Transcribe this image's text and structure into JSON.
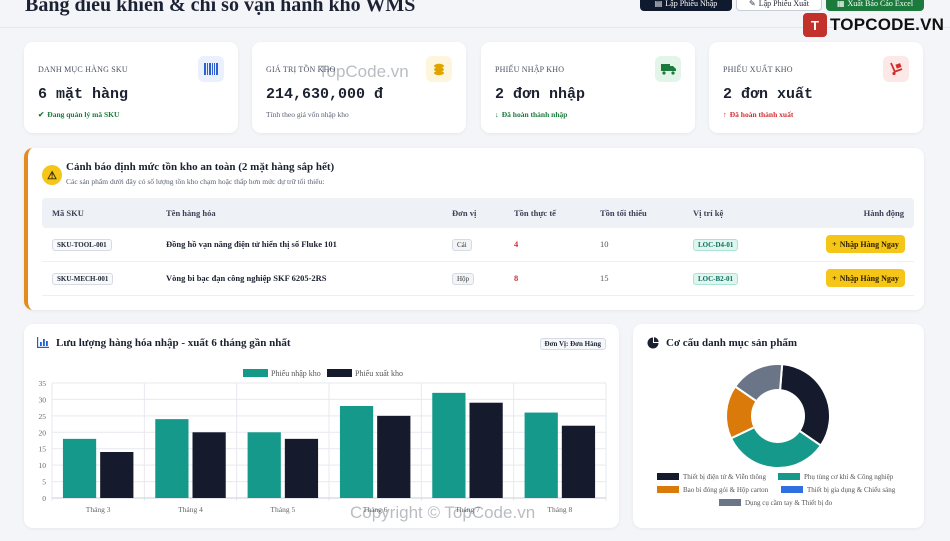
{
  "header": {
    "title": "Bảng điều khiển & chỉ số vận hành kho WMS",
    "btn_import": "Lập Phiếu Nhập",
    "btn_export": "Lập Phiếu Xuất",
    "btn_excel": "Xuất Báo Cáo Excel"
  },
  "brand": {
    "mark": "T",
    "name": "TOPCODE.VN"
  },
  "kpis": [
    {
      "label": "Danh mục hàng SKU",
      "value": "6 mặt hàng",
      "sub": "Đang quản lý mã SKU",
      "sub_color": "#1d7a3d",
      "sub_icon": "✔",
      "icon": "barcode-icon",
      "icon_color": "#2f5fd0",
      "icon_bg": "#eaf0fd"
    },
    {
      "label": "Giá trị tồn kho",
      "value": "214,630,000 đ",
      "sub": "Tính theo giá vốn nhập kho",
      "sub_color": "#5a6175",
      "sub_icon": "",
      "icon": "coins-icon",
      "icon_color": "#e0a400",
      "icon_bg": "#fdf5dc"
    },
    {
      "label": "Phiếu nhập kho",
      "value": "2 đơn nhập",
      "sub": "Đã hoàn thành nhập",
      "sub_color": "#1d7a3d",
      "sub_icon": "↓",
      "icon": "truck-icon",
      "icon_color": "#1d7a3d",
      "icon_bg": "#e3f4e8"
    },
    {
      "label": "Phiếu xuất kho",
      "value": "2 đơn xuất",
      "sub": "Đã hoàn thành xuất",
      "sub_color": "#d32f2f",
      "sub_icon": "↑",
      "icon": "dolly-icon",
      "icon_color": "#d32f2f",
      "icon_bg": "#fde8e8"
    }
  ],
  "alert": {
    "title": "Cảnh báo định mức tồn kho an toàn (2 mặt hàng sắp hết)",
    "subtitle": "Các sản phẩm dưới đây có số lượng tồn kho chạm hoặc thấp hơn mức dự trữ tối thiểu:",
    "columns": [
      "Mã SKU",
      "Tên hàng hóa",
      "Đơn vị",
      "Tồn thực tế",
      "Tồn tối thiểu",
      "Vị trí kệ",
      "Hành động"
    ],
    "rows": [
      {
        "sku": "SKU-TOOL-001",
        "name": "Đồng hồ vạn năng điện tử hiển thị số Fluke 101",
        "unit": "Cái",
        "stock": "4",
        "min": "10",
        "location": "LOC-D4-01",
        "action": "Nhập Hàng Ngay"
      },
      {
        "sku": "SKU-MECH-001",
        "name": "Vòng bi bạc đạn công nghiệp SKF 6205-2RS",
        "unit": "Hộp",
        "stock": "8",
        "min": "15",
        "location": "LOC-B2-01",
        "action": "Nhập Hàng Ngay"
      }
    ]
  },
  "flow_chart": {
    "title": "Lưu lượng hàng hóa nhập - xuất 6 tháng gần nhất",
    "unit_badge": "Đơn Vị: Đơn Hàng"
  },
  "pie_chart": {
    "title": "Cơ cấu danh mục sản phẩm"
  },
  "chart_data": [
    {
      "type": "bar",
      "categories": [
        "Tháng 3",
        "Tháng 4",
        "Tháng 5",
        "Tháng 6",
        "Tháng 7",
        "Tháng 8"
      ],
      "series": [
        {
          "name": "Phiếu nhập kho",
          "values": [
            18,
            24,
            20,
            28,
            32,
            26
          ],
          "color": "#14998a"
        },
        {
          "name": "Phiếu xuất kho",
          "values": [
            14,
            20,
            18,
            25,
            29,
            22
          ],
          "color": "#151b2d"
        }
      ],
      "ylim": [
        0,
        35
      ],
      "yticks": [
        0,
        5,
        10,
        15,
        20,
        25,
        30,
        35
      ],
      "grid": true,
      "legend": "top-center"
    },
    {
      "type": "pie",
      "donut": true,
      "labels": [
        "Thiết bị điện tử & Viễn thông",
        "Phụ tùng cơ khí & Công nghiệp",
        "Bao bì đóng gói & Hộp carton",
        "Thiết bị gia dụng & Chiếu sáng",
        "Dụng cụ cầm tay & Thiết bị đo"
      ],
      "values": [
        2,
        2,
        1,
        0,
        1
      ],
      "colors": [
        "#151b2d",
        "#14998a",
        "#d97a0b",
        "#2f6fe0",
        "#6b7588"
      ],
      "legend": "bottom"
    }
  ],
  "watermarks": [
    "TopCode.vn",
    "Copyright © TopCode.vn"
  ]
}
